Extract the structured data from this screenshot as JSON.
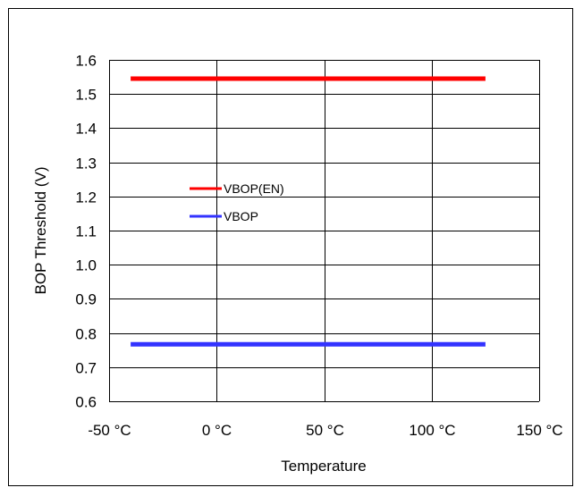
{
  "chart_data": {
    "type": "line",
    "title": "",
    "xlabel": "Temperature",
    "ylabel": "BOP Threshold (V)",
    "xlim": [
      -50,
      150
    ],
    "ylim": [
      0.6,
      1.6
    ],
    "x_ticks": [
      -50,
      0,
      50,
      100,
      150
    ],
    "x_tick_labels": [
      "-50 °C",
      "0 °C",
      "50 °C",
      "100 °C",
      "150 °C"
    ],
    "y_ticks": [
      0.6,
      0.7,
      0.8,
      0.9,
      1.0,
      1.1,
      1.2,
      1.3,
      1.4,
      1.5,
      1.6
    ],
    "y_tick_labels": [
      "0.6",
      "0.7",
      "0.8",
      "0.9",
      "1.0",
      "1.1",
      "1.2",
      "1.3",
      "1.4",
      "1.5",
      "1.6"
    ],
    "grid": true,
    "legend_position": "center-left",
    "series": [
      {
        "name": "VBOP(EN)",
        "color": "#ff0000",
        "x": [
          -40,
          125
        ],
        "y": [
          1.545,
          1.545
        ]
      },
      {
        "name": "VBOP",
        "color": "#3333ff",
        "x": [
          -40,
          125
        ],
        "y": [
          0.767,
          0.767
        ]
      }
    ]
  }
}
